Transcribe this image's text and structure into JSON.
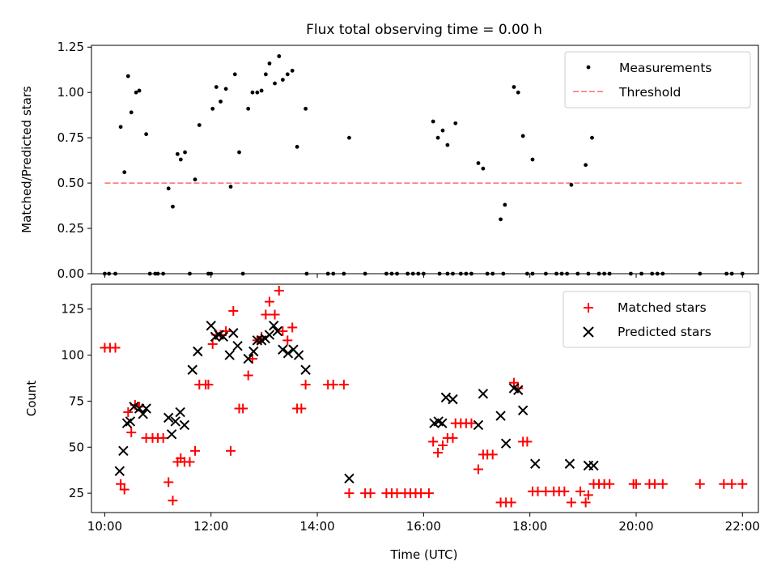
{
  "figure": {
    "title": "Flux total observing time = 0.00 h"
  },
  "chart_data": [
    {
      "type": "scatter",
      "ylabel": "Matched/Predicted stars",
      "xlim": [
        9.75,
        22.3
      ],
      "ylim": [
        0,
        1.26
      ],
      "yticks": [
        0.0,
        0.25,
        0.5,
        0.75,
        1.0,
        1.25
      ],
      "ytick_labels": [
        "0.00",
        "0.25",
        "0.50",
        "0.75",
        "1.00",
        "1.25"
      ],
      "xtick_labels_visible": false,
      "legend": {
        "position": "top-right",
        "entries": [
          {
            "label": "Measurements",
            "series": "measurements"
          },
          {
            "label": "Threshold",
            "series": "threshold"
          }
        ]
      },
      "series": [
        {
          "name": "Measurements",
          "key": "measurements",
          "color": "#000000",
          "marker": "dot",
          "points": [
            [
              10.3,
              0.81
            ],
            [
              10.37,
              0.56
            ],
            [
              10.44,
              1.09
            ],
            [
              10.5,
              0.89
            ],
            [
              10.59,
              1.0
            ],
            [
              10.65,
              1.01
            ],
            [
              10.78,
              0.77
            ],
            [
              11.2,
              0.47
            ],
            [
              11.28,
              0.37
            ],
            [
              11.37,
              0.66
            ],
            [
              11.43,
              0.63
            ],
            [
              11.51,
              0.67
            ],
            [
              11.7,
              0.52
            ],
            [
              11.78,
              0.82
            ],
            [
              12.03,
              0.91
            ],
            [
              12.1,
              1.03
            ],
            [
              12.18,
              0.95
            ],
            [
              12.28,
              1.02
            ],
            [
              12.37,
              0.48
            ],
            [
              12.45,
              1.1
            ],
            [
              12.53,
              0.67
            ],
            [
              12.7,
              0.91
            ],
            [
              12.78,
              1.0
            ],
            [
              12.87,
              1.0
            ],
            [
              12.95,
              1.01
            ],
            [
              13.03,
              1.1
            ],
            [
              13.1,
              1.16
            ],
            [
              13.2,
              1.05
            ],
            [
              13.28,
              1.2
            ],
            [
              13.35,
              1.07
            ],
            [
              13.44,
              1.1
            ],
            [
              13.53,
              1.12
            ],
            [
              13.62,
              0.7
            ],
            [
              13.78,
              0.91
            ],
            [
              14.6,
              0.75
            ],
            [
              16.18,
              0.84
            ],
            [
              16.27,
              0.75
            ],
            [
              16.36,
              0.79
            ],
            [
              16.45,
              0.71
            ],
            [
              16.6,
              0.83
            ],
            [
              17.03,
              0.61
            ],
            [
              17.12,
              0.58
            ],
            [
              17.45,
              0.3
            ],
            [
              17.53,
              0.38
            ],
            [
              17.7,
              1.03
            ],
            [
              17.78,
              1.0
            ],
            [
              17.87,
              0.76
            ],
            [
              18.05,
              0.63
            ],
            [
              18.78,
              0.49
            ],
            [
              19.05,
              0.6
            ],
            [
              19.17,
              0.75
            ],
            [
              10.0,
              0
            ],
            [
              10.08,
              0
            ],
            [
              10.2,
              0
            ],
            [
              10.85,
              0
            ],
            [
              10.95,
              0
            ],
            [
              11.0,
              0
            ],
            [
              11.1,
              0
            ],
            [
              11.6,
              0
            ],
            [
              11.95,
              0
            ],
            [
              12.0,
              0
            ],
            [
              12.6,
              0
            ],
            [
              13.8,
              0
            ],
            [
              14.2,
              0
            ],
            [
              14.3,
              0
            ],
            [
              14.5,
              0
            ],
            [
              14.9,
              0
            ],
            [
              15.3,
              0
            ],
            [
              15.4,
              0
            ],
            [
              15.5,
              0
            ],
            [
              15.7,
              0
            ],
            [
              15.8,
              0
            ],
            [
              15.9,
              0
            ],
            [
              16.0,
              0
            ],
            [
              16.3,
              0
            ],
            [
              16.45,
              0
            ],
            [
              16.55,
              0
            ],
            [
              16.7,
              0
            ],
            [
              16.8,
              0
            ],
            [
              16.9,
              0
            ],
            [
              17.2,
              0
            ],
            [
              17.3,
              0
            ],
            [
              17.5,
              0
            ],
            [
              17.95,
              0
            ],
            [
              18.05,
              0
            ],
            [
              18.3,
              0
            ],
            [
              18.5,
              0
            ],
            [
              18.6,
              0
            ],
            [
              18.7,
              0
            ],
            [
              18.9,
              0
            ],
            [
              19.1,
              0
            ],
            [
              19.3,
              0
            ],
            [
              19.4,
              0
            ],
            [
              19.5,
              0
            ],
            [
              19.9,
              0
            ],
            [
              20.1,
              0
            ],
            [
              20.3,
              0
            ],
            [
              20.4,
              0
            ],
            [
              20.5,
              0
            ],
            [
              21.2,
              0
            ],
            [
              21.7,
              0
            ],
            [
              21.8,
              0
            ],
            [
              22.0,
              0
            ]
          ]
        },
        {
          "name": "Threshold",
          "key": "threshold",
          "color": "#ff0000",
          "opacity": 0.5,
          "style": "dashed",
          "x": [
            10.0,
            22.0
          ],
          "y": [
            0.5,
            0.5
          ]
        }
      ]
    },
    {
      "type": "scatter",
      "xlabel": "Time (UTC)",
      "ylabel": "Count",
      "xlim": [
        9.75,
        22.3
      ],
      "ylim": [
        14.5,
        138.5
      ],
      "yticks": [
        25,
        50,
        75,
        100,
        125
      ],
      "ytick_labels": [
        "25",
        "50",
        "75",
        "100",
        "125"
      ],
      "xticks": [
        10,
        12,
        14,
        16,
        18,
        20,
        22
      ],
      "xtick_labels": [
        "10:00",
        "12:00",
        "14:00",
        "16:00",
        "18:00",
        "20:00",
        "22:00"
      ],
      "legend": {
        "position": "top-right",
        "entries": [
          {
            "label": "Matched stars",
            "series": "matched"
          },
          {
            "label": "Predicted stars",
            "series": "predicted"
          }
        ]
      },
      "series": [
        {
          "name": "Matched stars",
          "key": "matched",
          "color": "#ff0000",
          "marker": "plus",
          "points": [
            [
              10.0,
              104
            ],
            [
              10.1,
              104
            ],
            [
              10.2,
              104
            ],
            [
              10.3,
              30
            ],
            [
              10.37,
              27
            ],
            [
              10.44,
              69
            ],
            [
              10.5,
              58
            ],
            [
              10.57,
              73
            ],
            [
              10.65,
              72
            ],
            [
              10.78,
              55
            ],
            [
              10.9,
              55
            ],
            [
              11.0,
              55
            ],
            [
              11.1,
              55
            ],
            [
              11.2,
              31
            ],
            [
              11.28,
              21
            ],
            [
              11.37,
              42
            ],
            [
              11.43,
              44
            ],
            [
              11.5,
              42
            ],
            [
              11.6,
              42
            ],
            [
              11.7,
              48
            ],
            [
              11.78,
              84
            ],
            [
              11.9,
              84
            ],
            [
              11.95,
              84
            ],
            [
              12.03,
              106
            ],
            [
              12.1,
              111
            ],
            [
              12.18,
              111
            ],
            [
              12.28,
              113
            ],
            [
              12.37,
              48
            ],
            [
              12.42,
              124
            ],
            [
              12.53,
              71
            ],
            [
              12.6,
              71
            ],
            [
              12.7,
              89
            ],
            [
              12.78,
              98
            ],
            [
              12.87,
              108
            ],
            [
              12.95,
              110
            ],
            [
              13.03,
              122
            ],
            [
              13.1,
              129
            ],
            [
              13.2,
              122
            ],
            [
              13.28,
              135
            ],
            [
              13.35,
              113
            ],
            [
              13.44,
              108
            ],
            [
              13.53,
              115
            ],
            [
              13.62,
              71
            ],
            [
              13.7,
              71
            ],
            [
              13.78,
              84
            ],
            [
              14.2,
              84
            ],
            [
              14.3,
              84
            ],
            [
              14.5,
              84
            ],
            [
              14.6,
              25
            ],
            [
              14.9,
              25
            ],
            [
              15.0,
              25
            ],
            [
              15.3,
              25
            ],
            [
              15.4,
              25
            ],
            [
              15.5,
              25
            ],
            [
              15.65,
              25
            ],
            [
              15.75,
              25
            ],
            [
              15.85,
              25
            ],
            [
              15.95,
              25
            ],
            [
              16.1,
              25
            ],
            [
              16.18,
              53
            ],
            [
              16.27,
              47
            ],
            [
              16.36,
              51
            ],
            [
              16.45,
              55
            ],
            [
              16.55,
              55
            ],
            [
              16.6,
              63
            ],
            [
              16.7,
              63
            ],
            [
              16.8,
              63
            ],
            [
              16.9,
              63
            ],
            [
              17.03,
              38
            ],
            [
              17.12,
              46
            ],
            [
              17.2,
              46
            ],
            [
              17.3,
              46
            ],
            [
              17.45,
              20
            ],
            [
              17.55,
              20
            ],
            [
              17.65,
              20
            ],
            [
              17.7,
              85
            ],
            [
              17.78,
              82
            ],
            [
              17.87,
              53
            ],
            [
              17.95,
              53
            ],
            [
              18.05,
              26
            ],
            [
              18.15,
              26
            ],
            [
              18.3,
              26
            ],
            [
              18.45,
              26
            ],
            [
              18.55,
              26
            ],
            [
              18.65,
              26
            ],
            [
              18.78,
              20
            ],
            [
              18.95,
              26
            ],
            [
              19.05,
              20
            ],
            [
              19.1,
              24
            ],
            [
              19.2,
              30
            ],
            [
              19.3,
              30
            ],
            [
              19.4,
              30
            ],
            [
              19.5,
              30
            ],
            [
              19.95,
              30
            ],
            [
              20.0,
              30
            ],
            [
              20.25,
              30
            ],
            [
              20.35,
              30
            ],
            [
              20.5,
              30
            ],
            [
              21.2,
              30
            ],
            [
              21.65,
              30
            ],
            [
              21.8,
              30
            ],
            [
              22.0,
              30
            ]
          ]
        },
        {
          "name": "Predicted stars",
          "key": "predicted",
          "color": "#000000",
          "marker": "x",
          "points": [
            [
              10.28,
              37
            ],
            [
              10.35,
              48
            ],
            [
              10.42,
              63
            ],
            [
              10.48,
              64
            ],
            [
              10.55,
              72
            ],
            [
              10.65,
              71
            ],
            [
              10.72,
              68
            ],
            [
              10.78,
              71
            ],
            [
              11.2,
              66
            ],
            [
              11.26,
              57
            ],
            [
              11.33,
              64
            ],
            [
              11.42,
              69
            ],
            [
              11.5,
              62
            ],
            [
              11.65,
              92
            ],
            [
              11.75,
              102
            ],
            [
              12.0,
              116
            ],
            [
              12.08,
              110
            ],
            [
              12.15,
              111
            ],
            [
              12.23,
              110
            ],
            [
              12.35,
              100
            ],
            [
              12.42,
              112
            ],
            [
              12.5,
              105
            ],
            [
              12.7,
              98
            ],
            [
              12.8,
              102
            ],
            [
              12.87,
              108
            ],
            [
              12.95,
              108
            ],
            [
              13.02,
              109
            ],
            [
              13.1,
              111
            ],
            [
              13.18,
              116
            ],
            [
              13.25,
              113
            ],
            [
              13.35,
              103
            ],
            [
              13.45,
              101
            ],
            [
              13.55,
              103
            ],
            [
              13.65,
              100
            ],
            [
              13.78,
              92
            ],
            [
              14.6,
              33
            ],
            [
              16.2,
              63
            ],
            [
              16.28,
              64
            ],
            [
              16.35,
              63
            ],
            [
              16.42,
              77
            ],
            [
              16.55,
              76
            ],
            [
              17.03,
              62
            ],
            [
              17.12,
              79
            ],
            [
              17.45,
              67
            ],
            [
              17.55,
              52
            ],
            [
              17.7,
              82
            ],
            [
              17.78,
              81
            ],
            [
              17.87,
              70
            ],
            [
              18.1,
              41
            ],
            [
              18.75,
              41
            ],
            [
              19.1,
              40
            ],
            [
              19.2,
              40
            ]
          ]
        }
      ]
    }
  ]
}
